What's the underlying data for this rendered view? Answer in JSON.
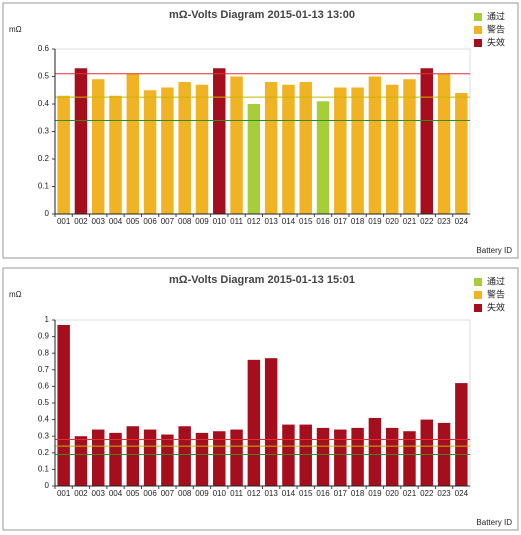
{
  "chart_data": [
    {
      "type": "bar",
      "title": "mΩ-Volts Diagram 2015-01-13 13:00",
      "ylabel": "mΩ",
      "xlabel": "Battery ID",
      "categories": [
        "001",
        "002",
        "003",
        "004",
        "005",
        "006",
        "007",
        "008",
        "009",
        "010",
        "011",
        "012",
        "013",
        "014",
        "015",
        "016",
        "017",
        "018",
        "019",
        "020",
        "021",
        "022",
        "023",
        "024"
      ],
      "series": [
        {
          "name": "通过",
          "color": "#a6ce39",
          "values": [
            null,
            null,
            null,
            null,
            null,
            null,
            null,
            null,
            null,
            null,
            null,
            0.4,
            null,
            null,
            null,
            0.41,
            null,
            null,
            null,
            null,
            null,
            null,
            null,
            null
          ]
        },
        {
          "name": "警告",
          "color": "#f0b323",
          "values": [
            0.43,
            null,
            0.49,
            0.43,
            0.51,
            0.45,
            0.46,
            0.48,
            0.47,
            null,
            0.5,
            null,
            0.48,
            0.47,
            0.48,
            null,
            0.46,
            0.46,
            0.5,
            0.47,
            0.49,
            null,
            0.51,
            0.44
          ]
        },
        {
          "name": "失效",
          "color": "#a50f1d",
          "values": [
            null,
            0.53,
            null,
            null,
            null,
            null,
            null,
            null,
            null,
            0.53,
            null,
            null,
            null,
            null,
            null,
            null,
            null,
            null,
            null,
            null,
            null,
            0.53,
            null,
            null
          ]
        }
      ],
      "thresholds": [
        {
          "value": 0.51,
          "color": "#e03030"
        },
        {
          "value": 0.425,
          "color": "#c8b400"
        },
        {
          "value": 0.34,
          "color": "#3a8a20"
        }
      ],
      "ylim": [
        0,
        0.6
      ],
      "yticks": [
        0,
        0.1,
        0.2,
        0.3,
        0.4,
        0.5,
        0.6
      ],
      "legend": "top-right"
    },
    {
      "type": "bar",
      "title": "mΩ-Volts Diagram 2015-01-13 15:01",
      "ylabel": "mΩ",
      "xlabel": "Battery ID",
      "categories": [
        "001",
        "002",
        "003",
        "004",
        "005",
        "006",
        "007",
        "008",
        "009",
        "010",
        "011",
        "012",
        "013",
        "014",
        "015",
        "016",
        "017",
        "018",
        "019",
        "020",
        "021",
        "022",
        "023",
        "024"
      ],
      "series": [
        {
          "name": "通过",
          "color": "#a6ce39",
          "values": [
            null,
            null,
            null,
            null,
            null,
            null,
            null,
            null,
            null,
            null,
            null,
            null,
            null,
            null,
            null,
            null,
            null,
            null,
            null,
            null,
            null,
            null,
            null,
            null
          ]
        },
        {
          "name": "警告",
          "color": "#f0b323",
          "values": [
            null,
            null,
            null,
            null,
            null,
            null,
            null,
            null,
            null,
            null,
            null,
            null,
            null,
            null,
            null,
            null,
            null,
            null,
            null,
            null,
            null,
            null,
            null,
            null
          ]
        },
        {
          "name": "失效",
          "color": "#a50f1d",
          "values": [
            0.97,
            0.3,
            0.34,
            0.32,
            0.36,
            0.34,
            0.31,
            0.36,
            0.32,
            0.33,
            0.34,
            0.76,
            0.77,
            0.37,
            0.37,
            0.35,
            0.34,
            0.35,
            0.41,
            0.35,
            0.33,
            0.4,
            0.38,
            0.62
          ]
        }
      ],
      "thresholds": [
        {
          "value": 0.28,
          "color": "#e03030"
        },
        {
          "value": 0.24,
          "color": "#c8b400"
        },
        {
          "value": 0.19,
          "color": "#3a8a20"
        }
      ],
      "ylim": [
        0,
        1
      ],
      "yticks": [
        0,
        0.1,
        0.2,
        0.3,
        0.4,
        0.5,
        0.6,
        0.7,
        0.8,
        0.9,
        1
      ],
      "legend": "top-right"
    }
  ]
}
